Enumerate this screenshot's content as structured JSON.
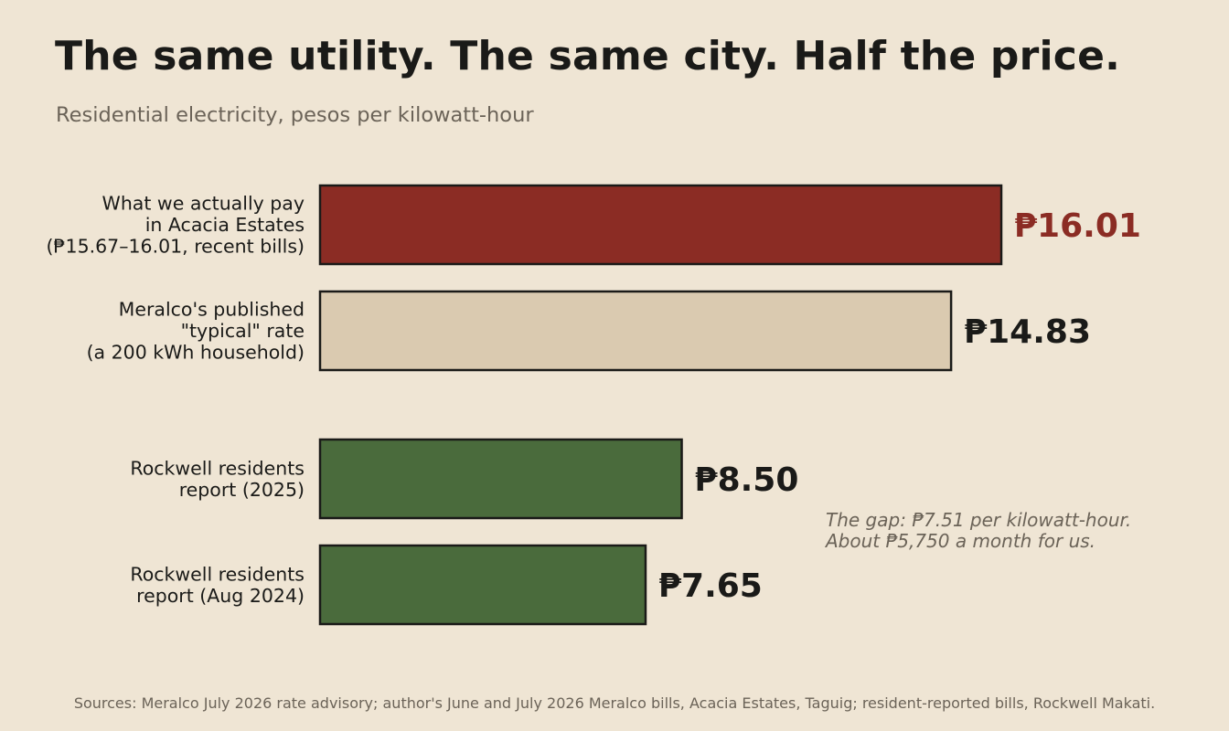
{
  "title": "The same utility. The same city. Half the price.",
  "subtitle": "Residential electricity, pesos per kilowatt-hour",
  "annotation": {
    "line1": "The gap: ₱7.51 per kilowatt-hour.",
    "line2": "About ₱5,750 a month for us."
  },
  "sources": "Sources: Meralco July 2026 rate advisory; author's June and July 2026 Meralco bills, Acacia Estates, Taguig; resident-reported bills, Rockwell Makati.",
  "colors": {
    "acacia": "#8b2c24",
    "meralco": "#dacab0",
    "rockwell": "#4a6b3c",
    "outline": "#1a1a18",
    "highlight_text": "#8b2c24",
    "value_text": "#1a1a18"
  },
  "chart_data": {
    "type": "bar",
    "orientation": "horizontal",
    "title": "The same utility. The same city. Half the price.",
    "subtitle": "Residential electricity, pesos per kilowatt-hour",
    "xlim": [
      0,
      16.01
    ],
    "grid": false,
    "categories": [
      {
        "label_lines": [
          "What we actually pay",
          "in Acacia Estates",
          "(₱15.67–16.01, recent bills)"
        ],
        "value": 16.01,
        "value_label": "₱16.01",
        "color_key": "acacia",
        "highlight": true
      },
      {
        "label_lines": [
          "Meralco's published",
          "\"typical\" rate",
          "(a 200 kWh household)"
        ],
        "value": 14.83,
        "value_label": "₱14.83",
        "color_key": "meralco",
        "highlight": false
      },
      {
        "label_lines": [
          "Rockwell residents",
          "report (2025)"
        ],
        "value": 8.5,
        "value_label": "₱8.50",
        "color_key": "rockwell",
        "highlight": false
      },
      {
        "label_lines": [
          "Rockwell residents",
          "report (Aug 2024)"
        ],
        "value": 7.65,
        "value_label": "₱7.65",
        "color_key": "rockwell",
        "highlight": false
      }
    ]
  }
}
